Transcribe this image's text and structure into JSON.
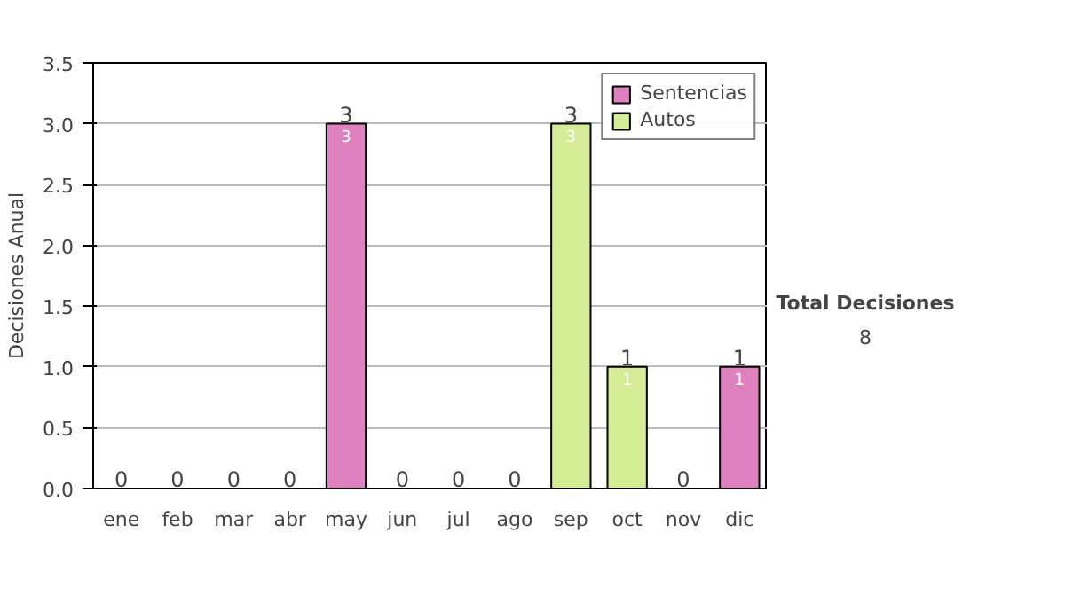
{
  "chart_data": {
    "type": "bar",
    "stacked": true,
    "ylabel": "Decisiones Anual",
    "categories": [
      "ene",
      "feb",
      "mar",
      "abr",
      "may",
      "jun",
      "jul",
      "ago",
      "sep",
      "oct",
      "nov",
      "dic"
    ],
    "series": [
      {
        "name": "Sentencias",
        "color": "#df80bf",
        "values": [
          0,
          0,
          0,
          0,
          3,
          0,
          0,
          0,
          0,
          0,
          0,
          1
        ],
        "value_labels": [
          null,
          null,
          null,
          null,
          "3",
          null,
          null,
          null,
          null,
          null,
          null,
          "1"
        ]
      },
      {
        "name": "Autos",
        "color": "#d5ec96",
        "values": [
          0,
          0,
          0,
          0,
          0,
          0,
          0,
          0,
          3,
          1,
          0,
          0
        ],
        "value_labels": [
          null,
          null,
          null,
          null,
          null,
          null,
          null,
          null,
          "3",
          "1",
          null,
          null
        ]
      }
    ],
    "totals": [
      "0",
      "0",
      "0",
      "0",
      "3",
      "0",
      "0",
      "0",
      "3",
      "1",
      "0",
      "1"
    ],
    "ylim": [
      0,
      3.5
    ],
    "yticks": [
      {
        "value": 0,
        "label": "0.0"
      },
      {
        "value": 0.5,
        "label": "0.5"
      },
      {
        "value": 1,
        "label": "1.0"
      },
      {
        "value": 1.5,
        "label": "1.5"
      },
      {
        "value": 2,
        "label": "2.0"
      },
      {
        "value": 2.5,
        "label": "2.5"
      },
      {
        "value": 3,
        "label": "3.0"
      },
      {
        "value": 3.5,
        "label": "3.5"
      }
    ],
    "grid": "y",
    "legend": "top right",
    "annotations": [
      "Total Decisiones",
      "8"
    ]
  }
}
